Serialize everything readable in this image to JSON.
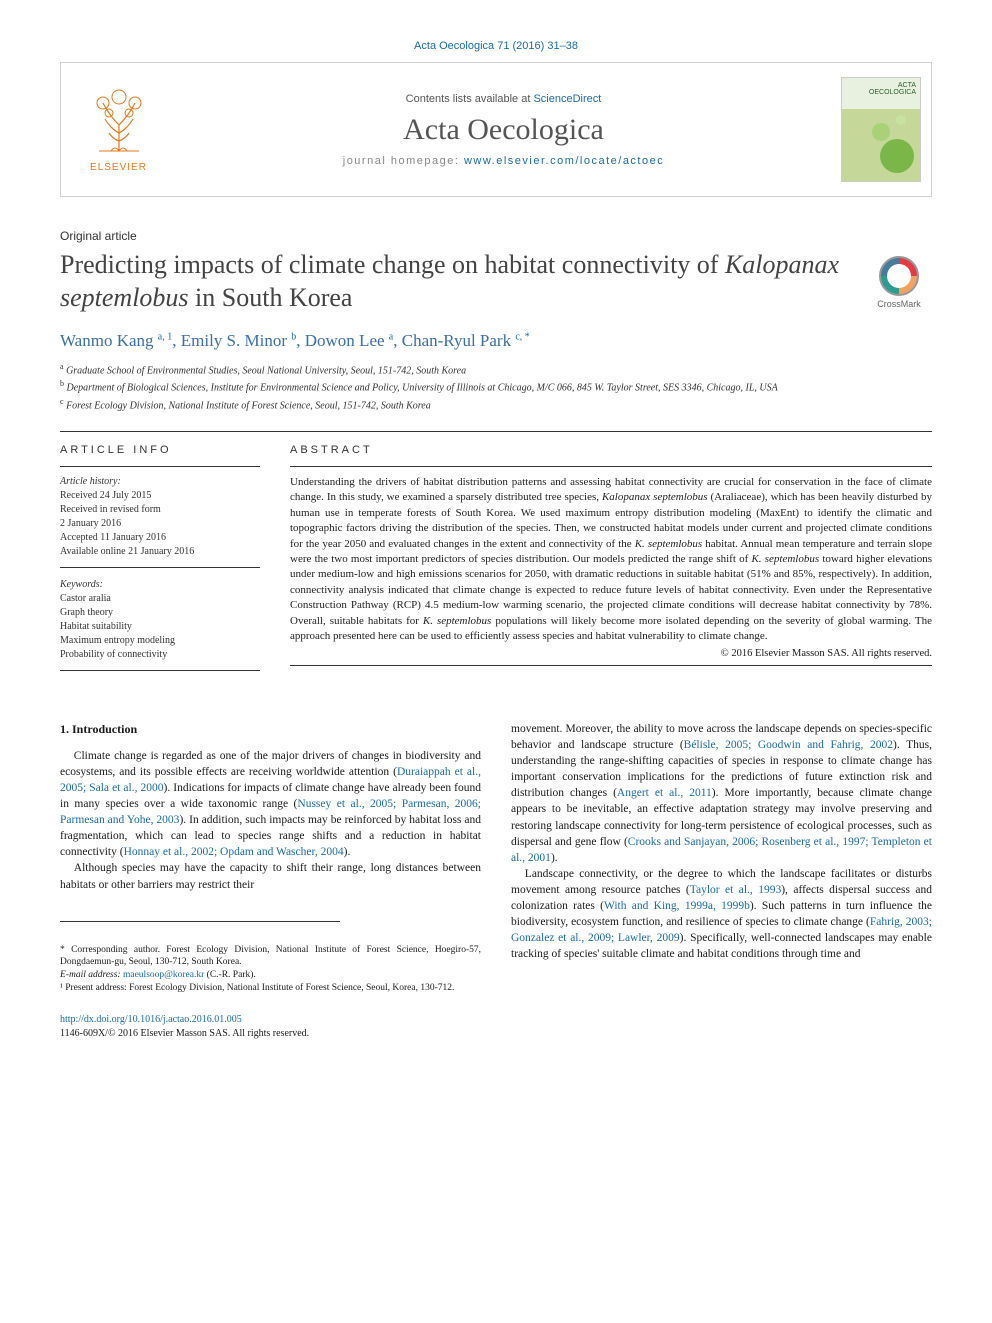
{
  "colors": {
    "link": "#1a6ba8",
    "text": "#1a1a1a",
    "elsevier_orange": "#e67817",
    "heading_gray": "#555555"
  },
  "citation": "Acta Oecologica 71 (2016) 31–38",
  "header": {
    "contents_prefix": "Contents lists available at ",
    "contents_link": "ScienceDirect",
    "journal_name": "Acta Oecologica",
    "homepage_prefix": "journal homepage: ",
    "homepage_url": "www.elsevier.com/locate/actoec",
    "publisher_word": "ELSEVIER",
    "cover_title": "ACTA\nOECOLOGICA"
  },
  "article_type": "Original article",
  "title_pre": "Predicting impacts of climate change on habitat connectivity of ",
  "title_species": "Kalopanax septemlobus",
  "title_post": " in South Korea",
  "crossmark_label": "CrossMark",
  "authors": [
    {
      "name": "Wanmo Kang",
      "aff": "a, 1"
    },
    {
      "name": "Emily S. Minor",
      "aff": "b"
    },
    {
      "name": "Dowon Lee",
      "aff": "a"
    },
    {
      "name": "Chan-Ryul Park",
      "aff": "c, *"
    }
  ],
  "affiliations": {
    "a": "Graduate School of Environmental Studies, Seoul National University, Seoul, 151-742, South Korea",
    "b": "Department of Biological Sciences, Institute for Environmental Science and Policy, University of Illinois at Chicago, M/C 066, 845 W. Taylor Street, SES 3346, Chicago, IL, USA",
    "c": "Forest Ecology Division, National Institute of Forest Science, Seoul, 151-742, South Korea"
  },
  "info_heading": "ARTICLE INFO",
  "abstract_heading": "ABSTRACT",
  "history": {
    "label": "Article history:",
    "received": "Received 24 July 2015",
    "revised_l1": "Received in revised form",
    "revised_l2": "2 January 2016",
    "accepted": "Accepted 11 January 2016",
    "online": "Available online 21 January 2016"
  },
  "keywords": {
    "label": "Keywords:",
    "items": [
      "Castor aralia",
      "Graph theory",
      "Habitat suitability",
      "Maximum entropy modeling",
      "Probability of connectivity"
    ]
  },
  "abstract_html": "Understanding the drivers of habitat distribution patterns and assessing habitat connectivity are crucial for conservation in the face of climate change. In this study, we examined a sparsely distributed tree species, <span class='sp'>Kalopanax septemlobus</span> (Araliaceae), which has been heavily disturbed by human use in temperate forests of South Korea. We used maximum entropy distribution modeling (MaxEnt) to identify the climatic and topographic factors driving the distribution of the species. Then, we constructed habitat models under current and projected climate conditions for the year 2050 and evaluated changes in the extent and connectivity of the <span class='sp'>K. septemlobus</span> habitat. Annual mean temperature and terrain slope were the two most important predictors of species distribution. Our models predicted the range shift of <span class='sp'>K. septemlobus</span> toward higher elevations under medium-low and high emissions scenarios for 2050, with dramatic reductions in suitable habitat (51% and 85%, respectively). In addition, connectivity analysis indicated that climate change is expected to reduce future levels of habitat connectivity. Even under the Representative Construction Pathway (RCP) 4.5 medium-low warming scenario, the projected climate conditions will decrease habitat connectivity by 78%. Overall, suitable habitats for <span class='sp'>K. septemlobus</span> populations will likely become more isolated depending on the severity of global warming. The approach presented here can be used to efficiently assess species and habitat vulnerability to climate change.",
  "copyright": "© 2016 Elsevier Masson SAS. All rights reserved.",
  "intro_heading": "1. Introduction",
  "left_paras": [
    "Climate change is regarded as one of the major drivers of changes in biodiversity and ecosystems, and its possible effects are receiving worldwide attention (<span class='ref'>Duraiappah et al., 2005; Sala et al., 2000</span>). Indications for impacts of climate change have already been found in many species over a wide taxonomic range (<span class='ref'>Nussey et al., 2005; Parmesan, 2006; Parmesan and Yohe, 2003</span>). In addition, such impacts may be reinforced by habitat loss and fragmentation, which can lead to species range shifts and a reduction in habitat connectivity (<span class='ref'>Honnay et al., 2002; Opdam and Wascher, 2004</span>).",
    "Although species may have the capacity to shift their range, long distances between habitats or other barriers may restrict their"
  ],
  "right_paras": [
    "movement. Moreover, the ability to move across the landscape depends on species-specific behavior and landscape structure (<span class='ref'>Bélisle, 2005; Goodwin and Fahrig, 2002</span>). Thus, understanding the range-shifting capacities of species in response to climate change has important conservation implications for the predictions of future extinction risk and distribution changes (<span class='ref'>Angert et al., 2011</span>). More importantly, because climate change appears to be inevitable, an effective adaptation strategy may involve preserving and restoring landscape connectivity for long-term persistence of ecological processes, such as dispersal and gene flow (<span class='ref'>Crooks and Sanjayan, 2006; Rosenberg et al., 1997; Templeton et al., 2001</span>).",
    "Landscape connectivity, or the degree to which the landscape facilitates or disturbs movement among resource patches (<span class='ref'>Taylor et al., 1993</span>), affects dispersal success and colonization rates (<span class='ref'>With and King, 1999a, 1999b</span>). Such patterns in turn influence the biodiversity, ecosystem function, and resilience of species to climate change (<span class='ref'>Fahrig, 2003; Gonzalez et al., 2009; Lawler, 2009</span>). Specifically, well-connected landscapes may enable tracking of species' suitable climate and habitat conditions through time and"
  ],
  "footnotes": {
    "corr": "* Corresponding author. Forest Ecology Division, National Institute of Forest Science, Hoegiro-57, Dongdaemun-gu, Seoul, 130-712, South Korea.",
    "email_label": "E-mail address: ",
    "email": "maeulsoop@korea.kr",
    "email_who": " (C.-R. Park).",
    "present": "¹ Present address: Forest Ecology Division, National Institute of Forest Science, Seoul, Korea, 130-712."
  },
  "doi": {
    "url": "http://dx.doi.org/10.1016/j.actao.2016.01.005",
    "issn_line": "1146-609X/© 2016 Elsevier Masson SAS. All rights reserved."
  }
}
